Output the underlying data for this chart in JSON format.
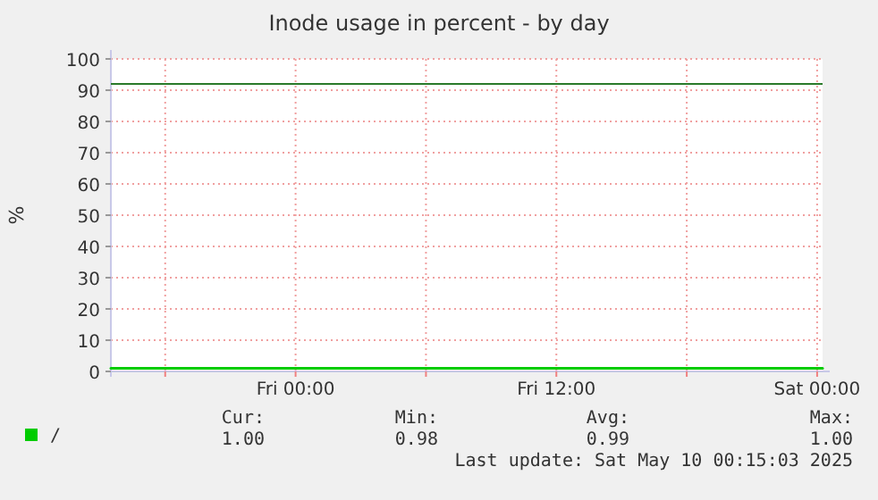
{
  "chart_data": {
    "type": "line",
    "title": "Inode usage in percent - by day",
    "ylabel": "%",
    "x": [
      "2025-05-08T15:30",
      "2025-05-08T22:00",
      "2025-05-09T05:00",
      "2025-05-09T12:00",
      "2025-05-09T18:00",
      "2025-05-10T00:15"
    ],
    "series": [
      {
        "name": "/",
        "color": "#00cc00",
        "values": [
          1,
          1,
          1,
          1,
          1,
          1
        ]
      }
    ],
    "xlim": [
      "2025-05-08T15:30",
      "2025-05-10T00:15"
    ],
    "xticks": [
      {
        "value": "2025-05-08T18:00",
        "label": null
      },
      {
        "value": "2025-05-09T00:00",
        "label": "Fri 00:00"
      },
      {
        "value": "2025-05-09T06:00",
        "label": null
      },
      {
        "value": "2025-05-09T12:00",
        "label": "Fri 12:00"
      },
      {
        "value": "2025-05-09T18:00",
        "label": null
      },
      {
        "value": "2025-05-10T00:00",
        "label": "Sat 00:00"
      }
    ],
    "ylim": [
      0,
      100
    ],
    "yticks": [
      0,
      10,
      20,
      30,
      40,
      50,
      60,
      70,
      80,
      90,
      100
    ],
    "ref_lines": [
      {
        "axis": "y",
        "value": 92,
        "color": "#2a7a2a"
      }
    ],
    "grid": true,
    "legend": "bottom",
    "marker": "none",
    "line_style": "solid",
    "annotations": [
      "Cur:",
      "Min:",
      "Avg:",
      "Max:",
      "1.00",
      "0.98",
      "0.99",
      "1.00",
      "Last update: Sat May 10 00:15:03 2025"
    ]
  }
}
